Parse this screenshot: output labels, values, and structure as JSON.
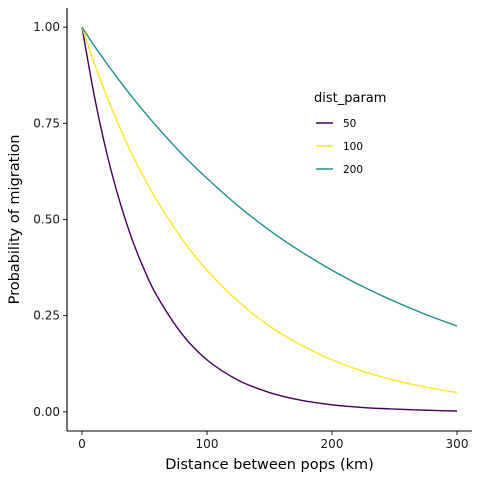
{
  "chart_data": {
    "type": "line",
    "title": "",
    "xlabel": "Distance between pops (km)",
    "ylabel": "Probability of migration",
    "xlim": [
      -12,
      312
    ],
    "ylim": [
      -0.05,
      1.05
    ],
    "x_ticks": [
      0,
      100,
      200,
      300
    ],
    "x_tick_labels": [
      "0",
      "100",
      "200",
      "300"
    ],
    "y_ticks": [
      0,
      0.25,
      0.5,
      0.75,
      1.0
    ],
    "y_tick_labels": [
      "0.00",
      "0.25",
      "0.50",
      "0.75",
      "1.00"
    ],
    "grid": false,
    "legend": {
      "title": "dist_param",
      "position": "right"
    },
    "x": [
      0,
      10,
      20,
      30,
      40,
      50,
      60,
      80,
      100,
      125,
      150,
      175,
      200,
      225,
      250,
      275,
      300
    ],
    "series": [
      {
        "name": "50",
        "color": "#440154",
        "values": [
          1.0,
          0.819,
          0.67,
          0.549,
          0.449,
          0.368,
          0.301,
          0.202,
          0.135,
          0.082,
          0.05,
          0.03,
          0.018,
          0.011,
          0.007,
          0.004,
          0.002
        ]
      },
      {
        "name": "100",
        "color": "#fde725",
        "values": [
          1.0,
          0.905,
          0.819,
          0.741,
          0.67,
          0.607,
          0.549,
          0.449,
          0.368,
          0.287,
          0.223,
          0.174,
          0.135,
          0.105,
          0.082,
          0.064,
          0.05
        ]
      },
      {
        "name": "200",
        "color": "#21908c",
        "values": [
          1.0,
          0.951,
          0.905,
          0.861,
          0.819,
          0.779,
          0.741,
          0.67,
          0.607,
          0.535,
          0.472,
          0.417,
          0.368,
          0.325,
          0.287,
          0.253,
          0.223
        ]
      }
    ]
  }
}
